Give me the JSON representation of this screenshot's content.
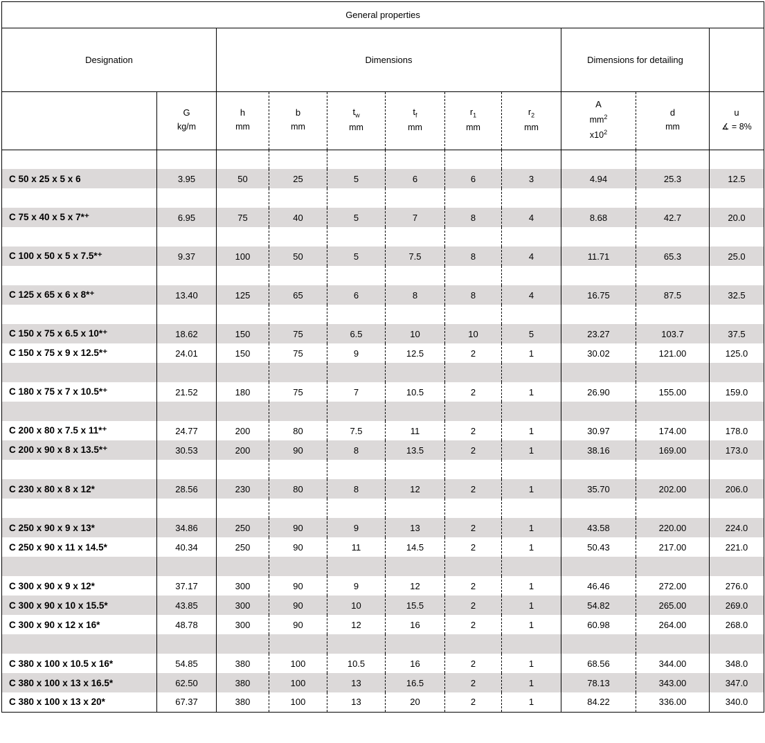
{
  "title": "General properties",
  "groups": {
    "designation": "Designation",
    "dimensions": "Dimensions",
    "detailing": "Dimensions for detailing"
  },
  "columns": {
    "G": {
      "sym": "G",
      "unit": "kg/m"
    },
    "h": {
      "sym": "h",
      "unit": "mm"
    },
    "b": {
      "sym": "b",
      "unit": "mm"
    },
    "tw": {
      "sym_html": "t<sub>w</sub>",
      "unit": "mm"
    },
    "tf": {
      "sym_html": "t<sub>f</sub>",
      "unit": "mm"
    },
    "r1": {
      "sym_html": "r<sub>1</sub>",
      "unit": "mm"
    },
    "r2": {
      "sym_html": "r<sub>2</sub>",
      "unit": "mm"
    },
    "A": {
      "sym": "A",
      "unit_html": "mm<sup>2</sup>",
      "extra_html": "x10<sup>2</sup>"
    },
    "d": {
      "sym": "d",
      "unit": "mm"
    },
    "u": {
      "sym": "u",
      "unit": "∡ = 8%"
    }
  },
  "rows": [
    {
      "type": "spacer"
    },
    {
      "type": "data",
      "shade": "g",
      "des": "C 50 x 25 x 5 x 6",
      "G": "3.95",
      "h": "50",
      "b": "25",
      "tw": "5",
      "tf": "6",
      "r1": "6",
      "r2": "3",
      "A": "4.94",
      "d": "25.3",
      "u": "12.5"
    },
    {
      "type": "spacer"
    },
    {
      "type": "data",
      "shade": "g",
      "des": "C 75 x 40 x 5 x 7*⁺",
      "G": "6.95",
      "h": "75",
      "b": "40",
      "tw": "5",
      "tf": "7",
      "r1": "8",
      "r2": "4",
      "A": "8.68",
      "d": "42.7",
      "u": "20.0"
    },
    {
      "type": "spacer"
    },
    {
      "type": "data",
      "shade": "g",
      "des": "C 100 x 50 x 5 x 7.5*⁺",
      "G": "9.37",
      "h": "100",
      "b": "50",
      "tw": "5",
      "tf": "7.5",
      "r1": "8",
      "r2": "4",
      "A": "11.71",
      "d": "65.3",
      "u": "25.0"
    },
    {
      "type": "spacer"
    },
    {
      "type": "data",
      "shade": "g",
      "des": "C 125 x 65 x 6 x 8*⁺",
      "G": "13.40",
      "h": "125",
      "b": "65",
      "tw": "6",
      "tf": "8",
      "r1": "8",
      "r2": "4",
      "A": "16.75",
      "d": "87.5",
      "u": "32.5"
    },
    {
      "type": "spacer"
    },
    {
      "type": "data",
      "shade": "g",
      "des": "C 150 x 75 x 6.5 x 10*⁺",
      "G": "18.62",
      "h": "150",
      "b": "75",
      "tw": "6.5",
      "tf": "10",
      "r1": "10",
      "r2": "5",
      "A": "23.27",
      "d": "103.7",
      "u": "37.5"
    },
    {
      "type": "data",
      "shade": "w",
      "des": "C 150 x 75 x 9 x 12.5*⁺",
      "G": "24.01",
      "h": "150",
      "b": "75",
      "tw": "9",
      "tf": "12.5",
      "r1": "2",
      "r2": "1",
      "A": "30.02",
      "d": "121.00",
      "u": "125.0"
    },
    {
      "type": "spacer",
      "shade": "g"
    },
    {
      "type": "data",
      "shade": "w",
      "des": "C 180 x 75 x 7 x 10.5*⁺",
      "G": "21.52",
      "h": "180",
      "b": "75",
      "tw": "7",
      "tf": "10.5",
      "r1": "2",
      "r2": "1",
      "A": "26.90",
      "d": "155.00",
      "u": "159.0"
    },
    {
      "type": "spacer",
      "shade": "g"
    },
    {
      "type": "data",
      "shade": "w",
      "des": "C 200 x 80 x 7.5 x 11*⁺",
      "G": "24.77",
      "h": "200",
      "b": "80",
      "tw": "7.5",
      "tf": "11",
      "r1": "2",
      "r2": "1",
      "A": "30.97",
      "d": "174.00",
      "u": "178.0"
    },
    {
      "type": "data",
      "shade": "g",
      "des": "C 200 x 90 x 8 x 13.5*⁺",
      "G": "30.53",
      "h": "200",
      "b": "90",
      "tw": "8",
      "tf": "13.5",
      "r1": "2",
      "r2": "1",
      "A": "38.16",
      "d": "169.00",
      "u": "173.0"
    },
    {
      "type": "spacer"
    },
    {
      "type": "data",
      "shade": "g",
      "des": "C 230 x 80 x 8 x 12*",
      "G": "28.56",
      "h": "230",
      "b": "80",
      "tw": "8",
      "tf": "12",
      "r1": "2",
      "r2": "1",
      "A": "35.70",
      "d": "202.00",
      "u": "206.0"
    },
    {
      "type": "spacer"
    },
    {
      "type": "data",
      "shade": "g",
      "des": "C 250 x 90 x 9 x 13*",
      "G": "34.86",
      "h": "250",
      "b": "90",
      "tw": "9",
      "tf": "13",
      "r1": "2",
      "r2": "1",
      "A": "43.58",
      "d": "220.00",
      "u": "224.0"
    },
    {
      "type": "data",
      "shade": "w",
      "des": "C 250 x 90 x 11 x 14.5*",
      "G": "40.34",
      "h": "250",
      "b": "90",
      "tw": "11",
      "tf": "14.5",
      "r1": "2",
      "r2": "1",
      "A": "50.43",
      "d": "217.00",
      "u": "221.0"
    },
    {
      "type": "spacer",
      "shade": "g"
    },
    {
      "type": "data",
      "shade": "w",
      "des": "C 300 x 90 x 9 x 12*",
      "G": "37.17",
      "h": "300",
      "b": "90",
      "tw": "9",
      "tf": "12",
      "r1": "2",
      "r2": "1",
      "A": "46.46",
      "d": "272.00",
      "u": "276.0"
    },
    {
      "type": "data",
      "shade": "g",
      "des": "C 300 x 90 x 10 x 15.5*",
      "G": "43.85",
      "h": "300",
      "b": "90",
      "tw": "10",
      "tf": "15.5",
      "r1": "2",
      "r2": "1",
      "A": "54.82",
      "d": "265.00",
      "u": "269.0"
    },
    {
      "type": "data",
      "shade": "w",
      "des": "C 300 x 90 x 12 x 16*",
      "G": "48.78",
      "h": "300",
      "b": "90",
      "tw": "12",
      "tf": "16",
      "r1": "2",
      "r2": "1",
      "A": "60.98",
      "d": "264.00",
      "u": "268.0"
    },
    {
      "type": "spacer",
      "shade": "g"
    },
    {
      "type": "data",
      "shade": "w",
      "des": "C 380 x 100 x 10.5 x 16*",
      "G": "54.85",
      "h": "380",
      "b": "100",
      "tw": "10.5",
      "tf": "16",
      "r1": "2",
      "r2": "1",
      "A": "68.56",
      "d": "344.00",
      "u": "348.0"
    },
    {
      "type": "data",
      "shade": "g",
      "des": "C 380 x 100 x 13 x 16.5*",
      "G": "62.50",
      "h": "380",
      "b": "100",
      "tw": "13",
      "tf": "16.5",
      "r1": "2",
      "r2": "1",
      "A": "78.13",
      "d": "343.00",
      "u": "347.0"
    },
    {
      "type": "data",
      "shade": "w",
      "des": "C 380 x 100 x 13 x 20*",
      "G": "67.37",
      "h": "380",
      "b": "100",
      "tw": "13",
      "tf": "20",
      "r1": "2",
      "r2": "1",
      "A": "84.22",
      "d": "336.00",
      "u": "340.0"
    }
  ]
}
